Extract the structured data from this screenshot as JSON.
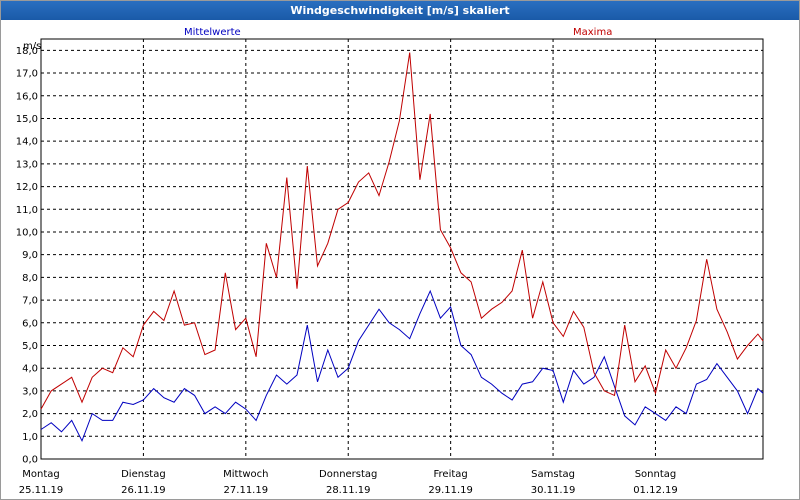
{
  "window": {
    "title": "Windgeschwindigkeit [m/s] skaliert"
  },
  "chart_data": {
    "type": "line",
    "title": "Windgeschwindigkeit [m/s] skaliert",
    "ylabel": "m/s",
    "ylim": [
      0,
      18.5
    ],
    "yticks": [
      "0,0",
      "1,0",
      "2,0",
      "3,0",
      "4,0",
      "5,0",
      "6,0",
      "7,0",
      "8,0",
      "9,0",
      "10,0",
      "11,0",
      "12,0",
      "13,0",
      "14,0",
      "15,0",
      "16,0",
      "17,0",
      "18,0"
    ],
    "days": [
      {
        "name": "Montag",
        "date": "25.11.19"
      },
      {
        "name": "Dienstag",
        "date": "26.11.19"
      },
      {
        "name": "Mittwoch",
        "date": "27.11.19"
      },
      {
        "name": "Donnerstag",
        "date": "28.11.19"
      },
      {
        "name": "Freitag",
        "date": "29.11.19"
      },
      {
        "name": "Samstag",
        "date": "30.11.19"
      },
      {
        "name": "Sonntag",
        "date": "01.12.19"
      }
    ],
    "x_range_days": [
      0,
      7.05
    ],
    "grid": true,
    "series": [
      {
        "name": "Mittelwerte",
        "color": "#0000c0",
        "x": [
          0,
          0.1,
          0.2,
          0.3,
          0.4,
          0.5,
          0.6,
          0.7,
          0.8,
          0.9,
          1,
          1.1,
          1.2,
          1.3,
          1.4,
          1.5,
          1.6,
          1.7,
          1.8,
          1.9,
          2,
          2.1,
          2.2,
          2.3,
          2.4,
          2.5,
          2.6,
          2.7,
          2.8,
          2.9,
          3,
          3.1,
          3.2,
          3.3,
          3.4,
          3.5,
          3.6,
          3.7,
          3.8,
          3.9,
          4,
          4.1,
          4.2,
          4.3,
          4.4,
          4.5,
          4.6,
          4.7,
          4.8,
          4.9,
          5,
          5.1,
          5.2,
          5.3,
          5.4,
          5.5,
          5.6,
          5.7,
          5.8,
          5.9,
          6,
          6.1,
          6.2,
          6.3,
          6.4,
          6.5,
          6.6,
          6.7,
          6.8,
          6.9,
          7,
          7.05
        ],
        "y": [
          1.3,
          1.6,
          1.2,
          1.7,
          0.8,
          2.0,
          1.7,
          1.7,
          2.5,
          2.4,
          2.6,
          3.1,
          2.7,
          2.5,
          3.1,
          2.8,
          2.0,
          2.3,
          2.0,
          2.5,
          2.2,
          1.7,
          2.8,
          3.7,
          3.3,
          3.7,
          5.9,
          3.4,
          4.8,
          3.6,
          4.0,
          5.2,
          5.9,
          6.6,
          6.0,
          5.7,
          5.3,
          6.4,
          7.4,
          6.2,
          6.7,
          5.0,
          4.6,
          3.6,
          3.3,
          2.9,
          2.6,
          3.3,
          3.4,
          4.0,
          3.9,
          2.5,
          3.9,
          3.3,
          3.6,
          4.5,
          3.2,
          1.9,
          1.5,
          2.3,
          2.0,
          1.7,
          2.3,
          2.0,
          3.3,
          3.5,
          4.2,
          3.6,
          3.0,
          2.0,
          3.1,
          2.9
        ]
      },
      {
        "name": "Maxima",
        "color": "#c00000",
        "x": [
          0,
          0.1,
          0.2,
          0.3,
          0.4,
          0.5,
          0.6,
          0.7,
          0.8,
          0.9,
          1,
          1.1,
          1.2,
          1.3,
          1.4,
          1.5,
          1.6,
          1.7,
          1.8,
          1.9,
          2,
          2.1,
          2.2,
          2.3,
          2.4,
          2.5,
          2.6,
          2.7,
          2.8,
          2.9,
          3,
          3.1,
          3.2,
          3.3,
          3.4,
          3.5,
          3.6,
          3.7,
          3.8,
          3.9,
          4,
          4.1,
          4.2,
          4.3,
          4.4,
          4.5,
          4.6,
          4.7,
          4.8,
          4.9,
          5,
          5.1,
          5.2,
          5.3,
          5.4,
          5.5,
          5.6,
          5.7,
          5.8,
          5.9,
          6,
          6.1,
          6.2,
          6.3,
          6.4,
          6.5,
          6.6,
          6.7,
          6.8,
          6.9,
          7,
          7.05
        ],
        "y": [
          2.2,
          3.0,
          3.3,
          3.6,
          2.5,
          3.6,
          4.0,
          3.8,
          4.9,
          4.5,
          5.9,
          6.5,
          6.1,
          7.4,
          5.9,
          6.0,
          4.6,
          4.8,
          8.2,
          5.7,
          6.2,
          4.5,
          9.5,
          8.0,
          12.4,
          7.5,
          12.9,
          8.5,
          9.5,
          11.0,
          11.3,
          12.2,
          12.6,
          11.6,
          13.1,
          14.9,
          17.9,
          12.3,
          15.2,
          10.1,
          9.3,
          8.2,
          7.8,
          6.2,
          6.6,
          6.9,
          7.4,
          9.2,
          6.2,
          7.8,
          6.0,
          5.4,
          6.5,
          5.8,
          3.8,
          3.0,
          2.8,
          5.9,
          3.4,
          4.1,
          2.9,
          4.8,
          4.0,
          4.9,
          6.1,
          8.8,
          6.6,
          5.6,
          4.4,
          5.0,
          5.5,
          5.2
        ]
      }
    ]
  }
}
